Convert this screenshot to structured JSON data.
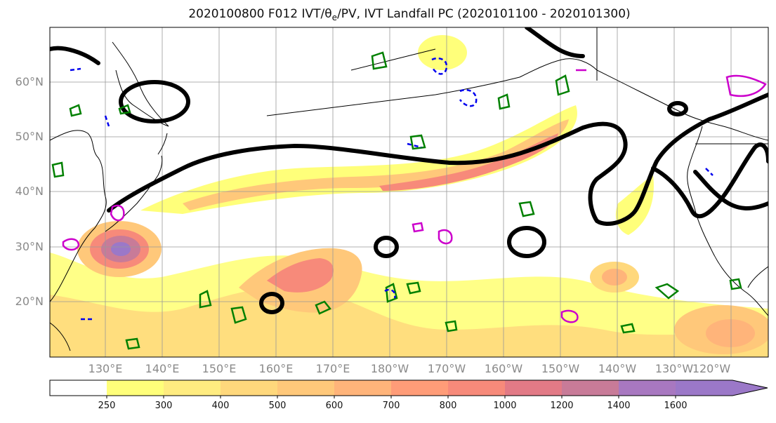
{
  "chart_data": {
    "type": "heatmap",
    "title": "2020100800 F012 IVT/θ",
    "title_sub": "e",
    "title_rest": "/PV, IVT Landfall PC (2020101100 - 2020101300)",
    "lat_ticks": [
      "60°N",
      "50°N",
      "40°N",
      "30°N",
      "20°N"
    ],
    "lat_values": [
      60,
      50,
      40,
      30,
      20
    ],
    "lon_ticks": [
      "130°E",
      "140°E",
      "150°E",
      "160°E",
      "170°E",
      "180°W",
      "170°W",
      "160°W",
      "150°W",
      "140°W",
      "130°W",
      "120°W"
    ],
    "lon_values": [
      130,
      140,
      150,
      160,
      170,
      180,
      190,
      200,
      210,
      220,
      230,
      240
    ],
    "extent": {
      "lon_min": 120,
      "lon_max": 247,
      "lat_min": 10,
      "lat_max": 70
    },
    "grid": true,
    "colorbar": {
      "labels": [
        "250",
        "300",
        "400",
        "500",
        "600",
        "700",
        "800",
        "1000",
        "1200",
        "1400",
        "1600"
      ],
      "colors": [
        "#ffffff",
        "#ffff7a",
        "#ffec80",
        "#ffd87c",
        "#ffc87a",
        "#ffb47a",
        "#ff9c78",
        "#f78a7a",
        "#e27a86",
        "#c87b98",
        "#a878c0",
        "#9b78c8"
      ]
    },
    "colors": {
      "pv_contour": "#000000",
      "theta_e_positive": "#008000",
      "theta_e_negative": "#0000ee",
      "pv_magenta": "#cc00cc",
      "coast": "#000000",
      "gridline": "#999999"
    }
  }
}
